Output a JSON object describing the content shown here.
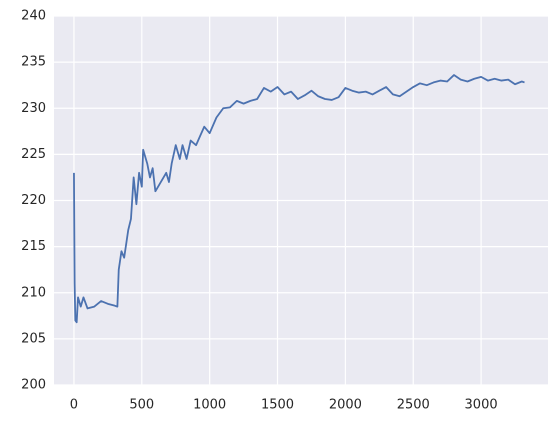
{
  "chart_data": {
    "type": "line",
    "color": "#4c72b0",
    "grid": true,
    "x": [
      0,
      5,
      10,
      20,
      30,
      50,
      70,
      100,
      150,
      200,
      250,
      300,
      320,
      330,
      350,
      370,
      400,
      420,
      440,
      460,
      480,
      500,
      510,
      540,
      560,
      580,
      600,
      640,
      680,
      700,
      720,
      750,
      780,
      800,
      830,
      860,
      900,
      930,
      960,
      1000,
      1050,
      1100,
      1150,
      1200,
      1250,
      1300,
      1350,
      1400,
      1450,
      1500,
      1550,
      1600,
      1650,
      1700,
      1750,
      1800,
      1850,
      1900,
      1950,
      2000,
      2050,
      2100,
      2150,
      2200,
      2250,
      2300,
      2350,
      2400,
      2450,
      2500,
      2550,
      2600,
      2650,
      2700,
      2750,
      2800,
      2850,
      2900,
      2950,
      3000,
      3050,
      3100,
      3150,
      3200,
      3250,
      3300,
      3320
    ],
    "values": [
      223,
      211,
      207,
      206.8,
      209.5,
      208.5,
      209.5,
      208.3,
      208.5,
      209.1,
      208.8,
      208.6,
      208.5,
      212.5,
      214.5,
      213.8,
      216.8,
      218,
      222.5,
      219.6,
      223,
      221.5,
      225.5,
      224,
      222.5,
      223.5,
      221,
      222,
      223,
      222,
      224,
      226,
      224.5,
      226,
      224.5,
      226.5,
      226,
      227,
      228,
      227.3,
      229,
      230,
      230.1,
      230.8,
      230.5,
      230.8,
      231,
      232.2,
      231.8,
      232.3,
      231.5,
      231.8,
      231,
      231.4,
      231.9,
      231.3,
      231,
      230.9,
      231.2,
      232.2,
      231.9,
      231.7,
      231.8,
      231.5,
      231.9,
      232.3,
      231.5,
      231.3,
      231.8,
      232.3,
      232.7,
      232.5,
      232.8,
      233,
      232.9,
      233.6,
      233.1,
      232.9,
      233.2,
      233.4,
      233,
      233.2,
      233,
      233.1,
      232.6,
      232.9,
      232.8
    ],
    "xlim": [
      -147,
      3493
    ],
    "xticks": [
      0,
      500,
      1000,
      1500,
      2000,
      2500,
      3000
    ],
    "ylim": [
      200,
      240
    ],
    "yticks": [
      200,
      205,
      210,
      215,
      220,
      225,
      230,
      235,
      240
    ]
  }
}
